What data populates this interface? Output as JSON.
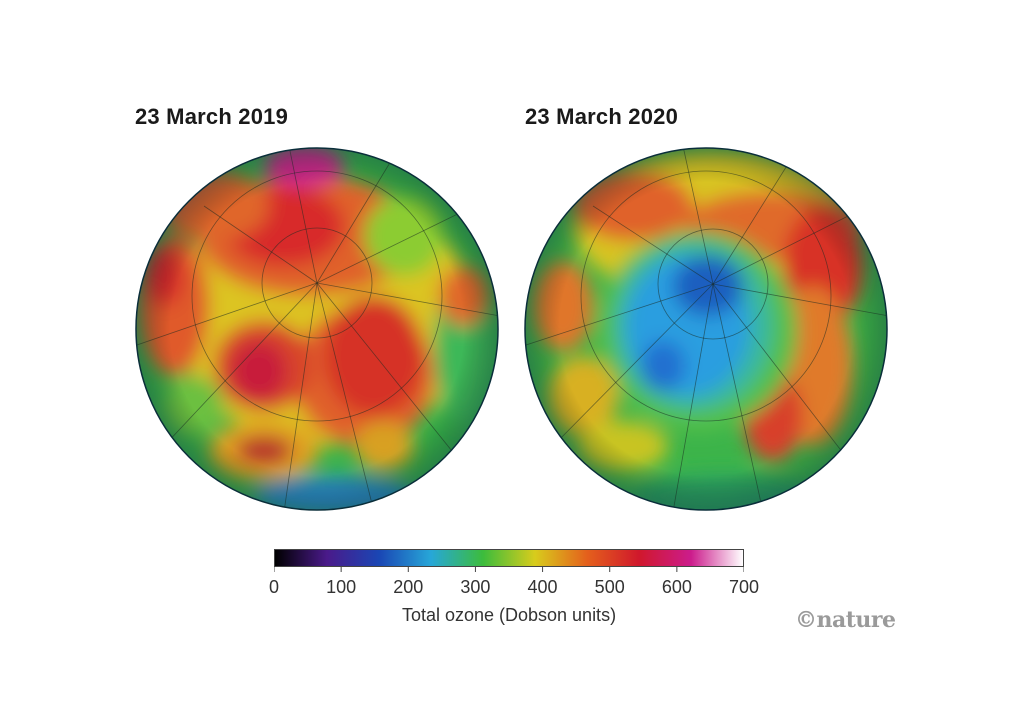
{
  "panels": [
    {
      "title": "23 March 2019"
    },
    {
      "title": "23 March 2020"
    }
  ],
  "colorbar": {
    "ticks": [
      "0",
      "100",
      "200",
      "300",
      "400",
      "500",
      "600",
      "700"
    ],
    "label": "Total ozone (Dobson units)",
    "range": [
      0,
      700
    ],
    "colors": [
      "#000000",
      "#4a1a8a",
      "#1a46b4",
      "#27a7d8",
      "#3cbc3c",
      "#d8cc1c",
      "#e4601c",
      "#d0182c",
      "#cc1c8c",
      "#ffffff"
    ]
  },
  "credit": "©nature",
  "icons": [
    "north-polar-globe-2019",
    "north-polar-globe-2020"
  ]
}
